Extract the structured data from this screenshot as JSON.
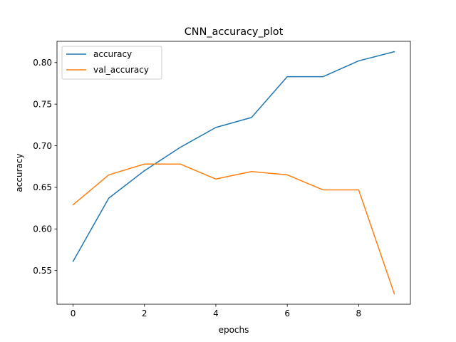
{
  "chart_data": {
    "type": "line",
    "title": "CNN_accuracy_plot",
    "xlabel": "epochs",
    "ylabel": "accuracy",
    "x": [
      0,
      1,
      2,
      3,
      4,
      5,
      6,
      7,
      8,
      9
    ],
    "xlim": [
      -0.45,
      9.45
    ],
    "ylim": [
      0.5095,
      0.8255
    ],
    "xticks": [
      0,
      2,
      4,
      6,
      8
    ],
    "yticks": [
      0.55,
      0.6,
      0.65,
      0.7,
      0.75,
      0.8
    ],
    "xtick_labels": [
      "0",
      "2",
      "4",
      "6",
      "8"
    ],
    "ytick_labels": [
      "0.55",
      "0.60",
      "0.65",
      "0.70",
      "0.75",
      "0.80"
    ],
    "grid": false,
    "legend_position": "upper-left",
    "series": [
      {
        "name": "accuracy",
        "color": "#1f77b4",
        "values": [
          0.561,
          0.637,
          0.67,
          0.698,
          0.722,
          0.734,
          0.783,
          0.783,
          0.802,
          0.813
        ]
      },
      {
        "name": "val_accuracy",
        "color": "#ff7f0e",
        "values": [
          0.629,
          0.665,
          0.678,
          0.678,
          0.66,
          0.669,
          0.665,
          0.647,
          0.647,
          0.522
        ]
      }
    ]
  }
}
